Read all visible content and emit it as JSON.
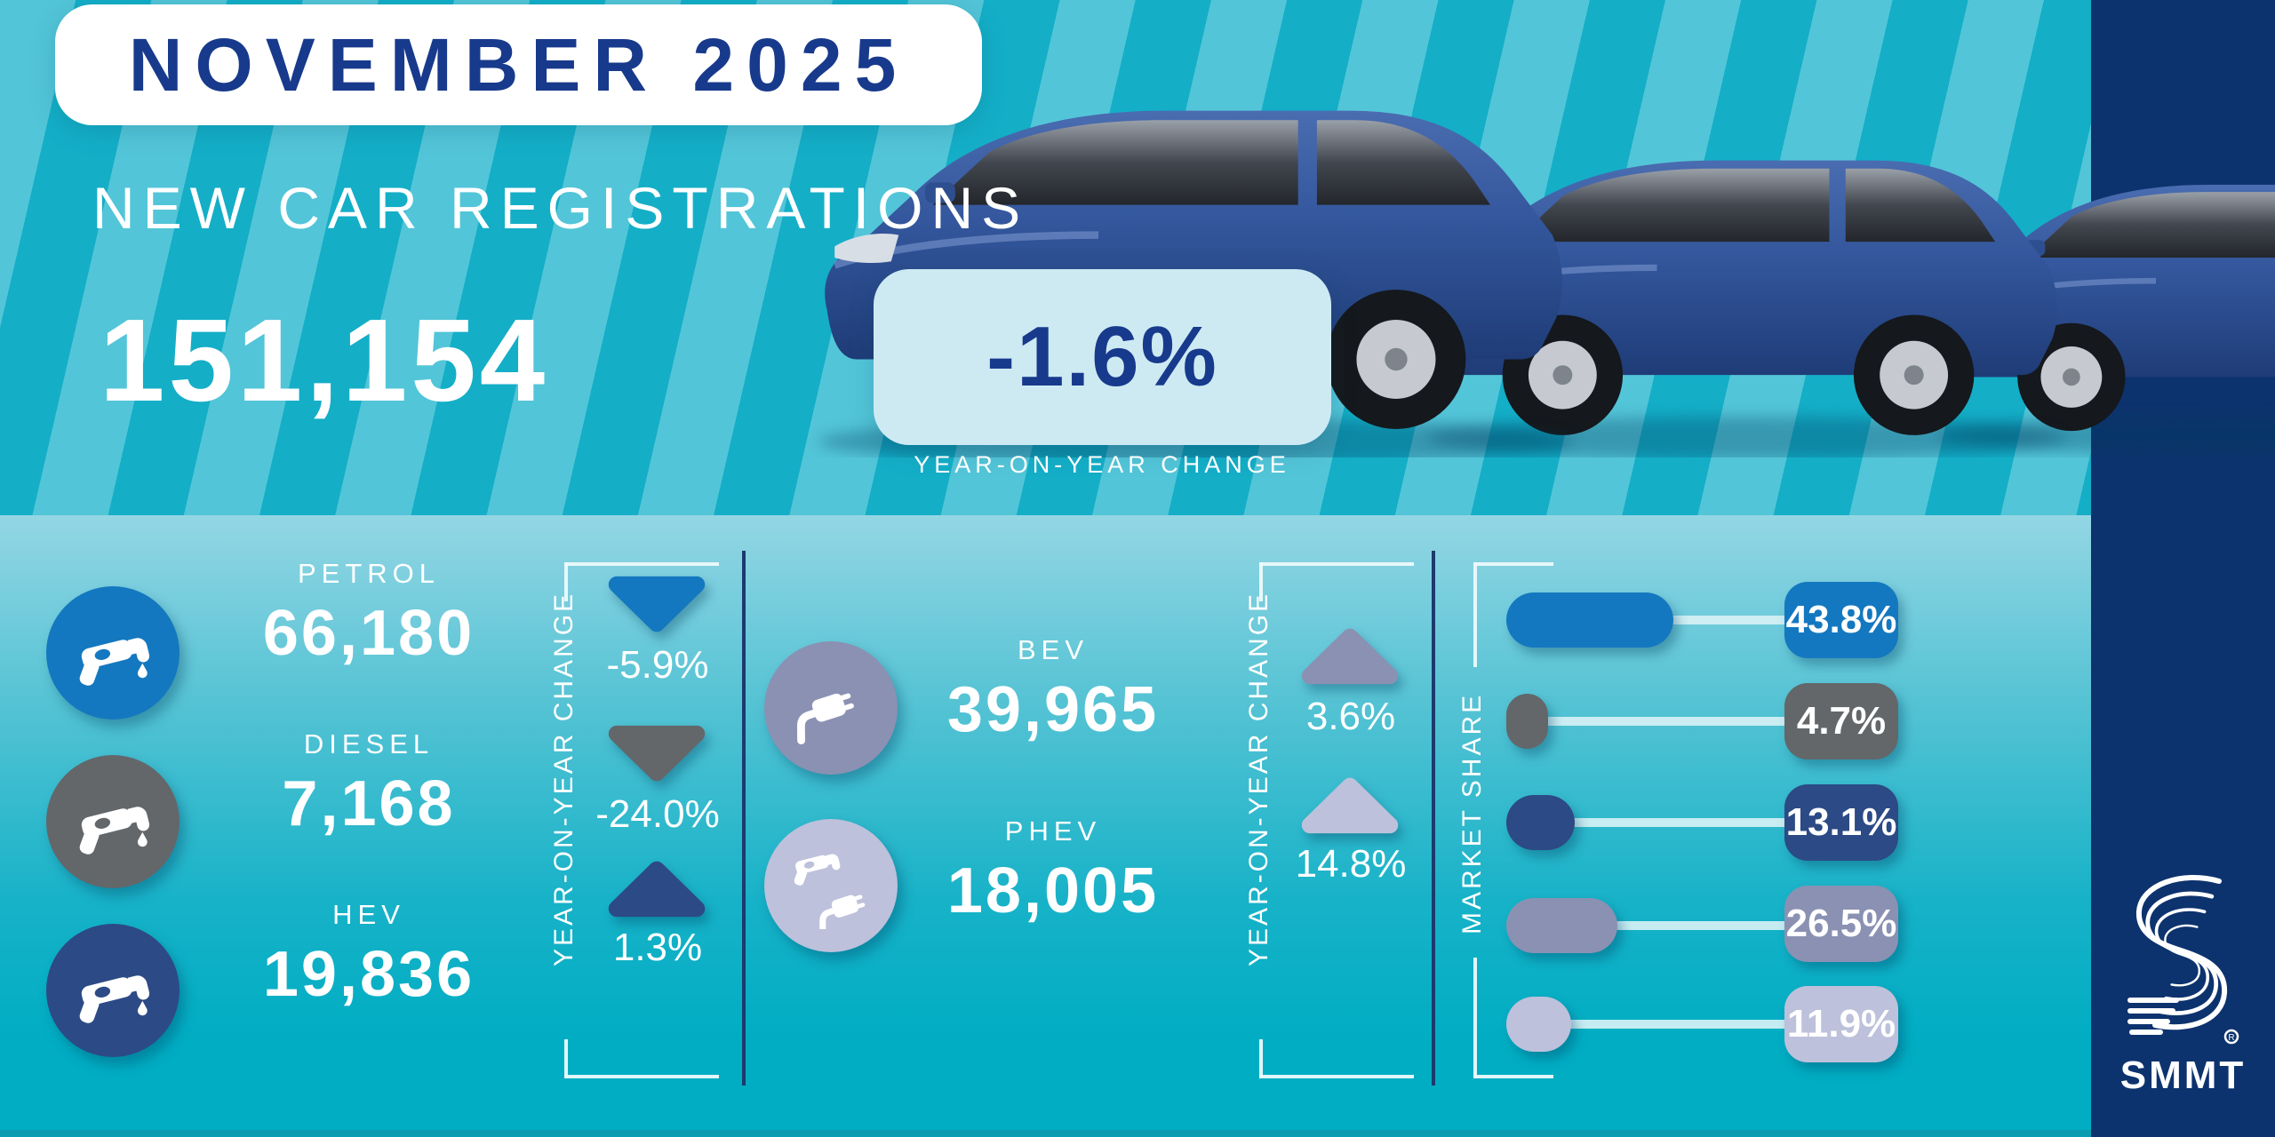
{
  "header": {
    "badge": "NOVEMBER 2025",
    "title": "NEW CAR REGISTRATIONS",
    "total": "151,154",
    "total_change": "-1.6%",
    "change_caption": "YEAR-ON-YEAR CHANGE"
  },
  "colors": {
    "stripe_light": "#53c5d8",
    "stripe_dark": "#14aec7",
    "panel_top": "#93d6e4",
    "panel_bottom": "#00adc3",
    "navy_text": "#183a8c",
    "band_navy": "#0d336e",
    "badge_bg": "#cdeaf3",
    "petrol": "#1478c0",
    "diesel": "#63676a",
    "hev": "#2c4a85",
    "bev": "#8a91b3",
    "phev": "#bdc1db"
  },
  "left_group": {
    "axis_label": "YEAR-ON-YEAR CHANGE",
    "rows": [
      {
        "label": "PETROL",
        "value": "66,180",
        "change": "-5.9%",
        "direction": "down"
      },
      {
        "label": "DIESEL",
        "value": "7,168",
        "change": "-24.0%",
        "direction": "down"
      },
      {
        "label": "HEV",
        "value": "19,836",
        "change": "1.3%",
        "direction": "up"
      }
    ]
  },
  "middle_group": {
    "axis_label": "YEAR-ON-YEAR CHANGE",
    "rows": [
      {
        "label": "BEV",
        "value": "39,965",
        "change": "3.6%",
        "direction": "up"
      },
      {
        "label": "PHEV",
        "value": "18,005",
        "change": "14.8%",
        "direction": "up"
      }
    ]
  },
  "market_share": {
    "axis_label": "MARKET SHARE",
    "rows": [
      {
        "label": "43.8%",
        "share": 43.8
      },
      {
        "label": "4.7%",
        "share": 4.7
      },
      {
        "label": "13.1%",
        "share": 13.1
      },
      {
        "label": "26.5%",
        "share": 26.5
      },
      {
        "label": "11.9%",
        "share": 11.9
      }
    ]
  },
  "logo": {
    "text": "SMMT",
    "registered": "®"
  },
  "chart_data": {
    "type": "table",
    "title": "NEW CAR REGISTRATIONS — NOVEMBER 2025",
    "total_registrations": 151154,
    "total_yoy_change_pct": -1.6,
    "columns": [
      "fuel",
      "registrations",
      "yoy_change_pct",
      "market_share_pct"
    ],
    "rows": [
      {
        "fuel": "PETROL",
        "registrations": 66180,
        "yoy_change_pct": -5.9,
        "market_share_pct": 43.8
      },
      {
        "fuel": "DIESEL",
        "registrations": 7168,
        "yoy_change_pct": -24.0,
        "market_share_pct": 4.7
      },
      {
        "fuel": "HEV",
        "registrations": 19836,
        "yoy_change_pct": 1.3,
        "market_share_pct": 13.1
      },
      {
        "fuel": "BEV",
        "registrations": 39965,
        "yoy_change_pct": 3.6,
        "market_share_pct": 26.5
      },
      {
        "fuel": "PHEV",
        "registrations": 18005,
        "yoy_change_pct": 14.8,
        "market_share_pct": 11.9
      }
    ],
    "legend_position": "none",
    "grid": false
  }
}
